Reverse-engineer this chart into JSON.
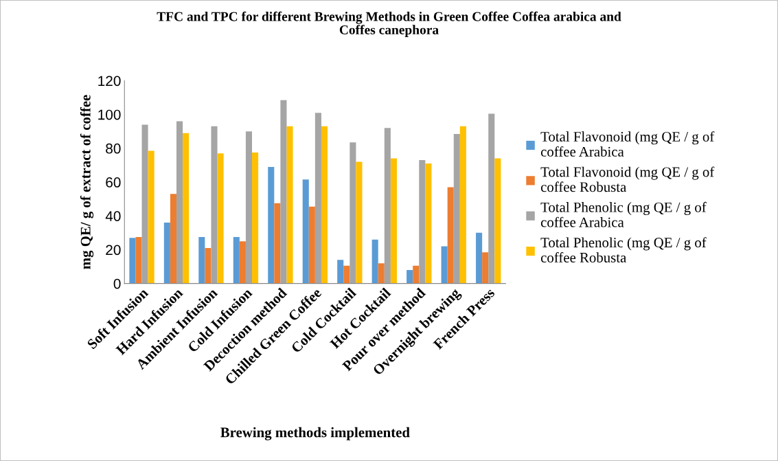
{
  "chart_data": {
    "type": "bar",
    "title": "TFC and TPC for different Brewing Methods in Green Coffee Coffea arabica and\nCoffes canephora",
    "xlabel": "Brewing methods implemented",
    "ylabel": "mg QE/ g of extract of coffee",
    "categories": [
      "Soft Infusion",
      "Hard Infusion",
      "Ambient Infusion",
      "Cold Infusion",
      "Decoction method",
      "Chilled Green Coffee",
      "Cold Cocktail",
      "Hot Cocktail",
      "Pour over method",
      "Overnight brewing",
      "French Press"
    ],
    "series": [
      {
        "name": "Total Flavonoid (mg QE / g of coffee Arabica",
        "color": "#5b9bd5",
        "values": [
          27,
          36,
          27.5,
          27.5,
          69,
          61.5,
          14,
          26,
          8,
          22,
          30
        ]
      },
      {
        "name": "Total Flavonoid (mg QE / g of coffee Robusta",
        "color": "#ed7d31",
        "values": [
          27.5,
          53,
          21,
          25,
          47.5,
          45.5,
          10.5,
          12,
          10.5,
          57,
          18.5
        ]
      },
      {
        "name": "Total Phenolic (mg QE / g of coffee Arabica",
        "color": "#a5a5a5",
        "values": [
          94,
          96,
          93,
          90,
          108.5,
          101,
          83.5,
          92,
          73,
          88.5,
          100.5
        ]
      },
      {
        "name": "Total Phenolic (mg QE / g of coffee Robusta",
        "color": "#ffc000",
        "values": [
          78.5,
          89,
          77,
          77.5,
          93,
          93,
          72,
          74,
          71,
          93,
          74
        ]
      }
    ],
    "ylim": [
      0,
      120
    ],
    "yticks": [
      0,
      20,
      40,
      60,
      80,
      100,
      120
    ],
    "grid": false,
    "legend": "right"
  }
}
